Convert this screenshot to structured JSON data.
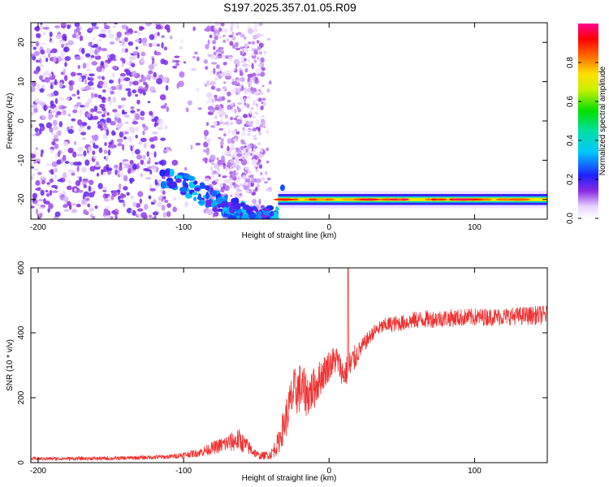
{
  "title": "S197.2025.357.01.05.R09",
  "chart_data": [
    {
      "type": "heatmap",
      "xlabel": "Height of straight line (km)",
      "ylabel": "Frequency (Hz)",
      "xlim": [
        -205,
        150
      ],
      "ylim": [
        -25,
        25
      ],
      "xticks": [
        -200,
        -100,
        0,
        100
      ],
      "yticks": [
        -20,
        -10,
        0,
        10,
        20
      ],
      "colorbar": {
        "label": "Normalized spectral amplitude",
        "range": [
          0,
          1
        ],
        "ticks": [
          0.0,
          0.2,
          0.4,
          0.6,
          0.8
        ],
        "tick_labels": [
          "0.0",
          "0.2",
          "0.4",
          "0.6",
          "0.8"
        ],
        "colormap": "white-violet-blue-cyan-green-yellow-red-magenta"
      },
      "features": {
        "noise_region_x": [
          -205,
          -45
        ],
        "dense_noise_x": [
          -205,
          -110
        ],
        "sparse_band_x": [
          -80,
          -40
        ],
        "descending_track": [
          [
            -115,
            -14
          ],
          [
            -95,
            -17
          ],
          [
            -80,
            -20
          ],
          [
            -70,
            -22
          ],
          [
            -60,
            -23.5
          ],
          [
            -45,
            -24.5
          ],
          [
            -35,
            -24
          ]
        ],
        "signal_line": {
          "x": [
            -35,
            150
          ],
          "frequency": -20,
          "peak_amplitude": 0.95
        }
      }
    },
    {
      "type": "line",
      "xlabel": "Height of straight line (km)",
      "ylabel": "SNR (10 * v/v)",
      "xlim": [
        -205,
        150
      ],
      "ylim": [
        0,
        600
      ],
      "xticks": [
        -200,
        -100,
        0,
        100
      ],
      "yticks": [
        0,
        200,
        400,
        600
      ],
      "color": "#ee3333",
      "series_envelope": {
        "x": [
          -205,
          -150,
          -110,
          -90,
          -80,
          -70,
          -62,
          -55,
          -48,
          -40,
          -35,
          -30,
          -25,
          -20,
          -15,
          -10,
          -5,
          0,
          5,
          10,
          15,
          20,
          25,
          30,
          35,
          40,
          50,
          60,
          80,
          100,
          120,
          150
        ],
        "mean": [
          12,
          13,
          18,
          30,
          45,
          60,
          70,
          45,
          20,
          25,
          60,
          130,
          210,
          230,
          210,
          230,
          270,
          300,
          320,
          270,
          300,
          340,
          370,
          400,
          415,
          425,
          430,
          440,
          445,
          448,
          450,
          455
        ],
        "amp": [
          10,
          12,
          14,
          25,
          40,
          55,
          70,
          45,
          20,
          30,
          70,
          120,
          150,
          160,
          140,
          130,
          110,
          100,
          90,
          80,
          110,
          60,
          50,
          45,
          45,
          50,
          50,
          55,
          55,
          55,
          55,
          60
        ]
      },
      "spike": {
        "x": 13,
        "y": 600
      }
    }
  ]
}
